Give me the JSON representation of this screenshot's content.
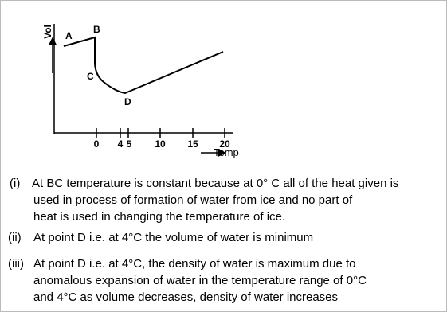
{
  "figure": {
    "y_axis_label": "Vol",
    "x_axis_label": "Temp",
    "points": [
      "A",
      "B",
      "C",
      "D"
    ],
    "x_ticks": [
      "0",
      "4",
      "5",
      "10",
      "15",
      "20"
    ]
  },
  "statements": [
    {
      "number": "(i)",
      "lines": [
        "At BC temperature is constant because at 0° C all of the heat given is",
        "used in process of formation of water from ice and no part of",
        "heat is used in changing the temperature of ice."
      ]
    },
    {
      "number": "(ii)",
      "lines": [
        "At point D i.e. at 4°C the volume of water is minimum"
      ]
    },
    {
      "number": "(iii)",
      "lines": [
        "At point D i.e. at 4°C, the density of water is maximum due to",
        "anomalous expansion of water in the temperature range of 0°C",
        "and 4°C as volume decreases, density of water increases"
      ]
    }
  ]
}
